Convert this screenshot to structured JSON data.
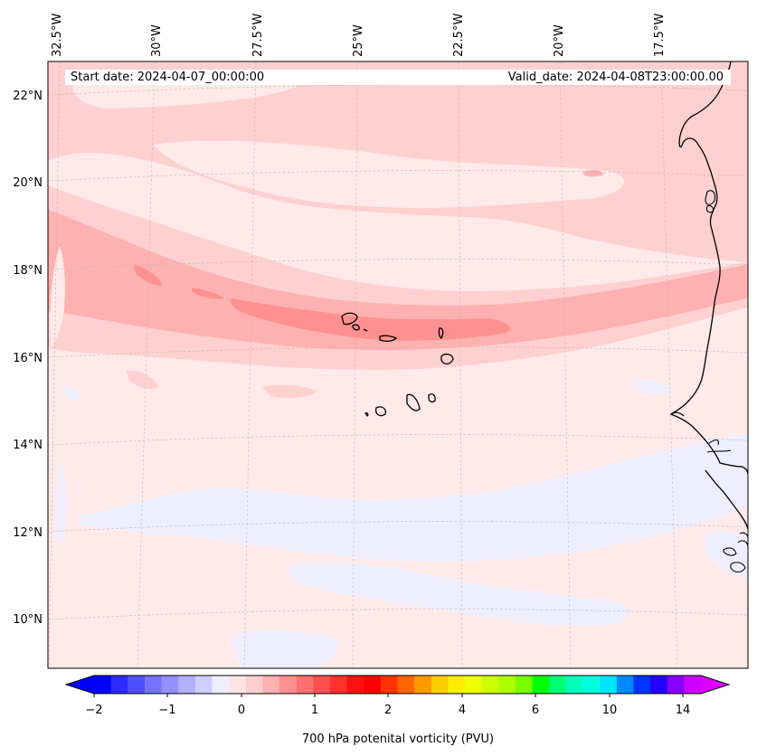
{
  "map": {
    "start_date_label": "Start date: 2024-04-07_00:00:00",
    "valid_date_label": "Valid_date: 2024-04-08T23:00:00.00",
    "lon_labels": [
      "32.5°W",
      "30°W",
      "27.5°W",
      "25°W",
      "22.5°W",
      "20°W",
      "17.5°W"
    ],
    "lat_labels": [
      "22°N",
      "20°N",
      "18°N",
      "16°N",
      "14°N",
      "12°N",
      "10°N"
    ],
    "field_levels": {
      "background": "#ffe9e9",
      "band_light": "#ffd0d0",
      "band_mid": "#ffb0b0",
      "band_core": "#ff9090",
      "negative": "#eeeeff"
    },
    "coastline_color": "#000000"
  },
  "colorbar": {
    "title": "700 hPa potenital vorticity (PVU)",
    "tick_labels": [
      "−2",
      "−1",
      "0",
      "1",
      "2",
      "4",
      "6",
      "10",
      "14"
    ],
    "colors": [
      "#0000ff",
      "#2b2bff",
      "#4f4fff",
      "#7373ff",
      "#9090ff",
      "#b0b0ff",
      "#cfcfff",
      "#eeeeff",
      "#ffe4e4",
      "#ffcfcf",
      "#ffb0b0",
      "#ff9090",
      "#ff7070",
      "#ff5050",
      "#ff3030",
      "#ff1010",
      "#ff0000",
      "#ff3300",
      "#ff6600",
      "#ff9900",
      "#ffcc00",
      "#ffee00",
      "#eeff00",
      "#ccff00",
      "#aaff00",
      "#77ff00",
      "#00ff00",
      "#00ff77",
      "#00ffbb",
      "#00ffdd",
      "#00e5ff",
      "#0088ff",
      "#0033ff",
      "#2200ff",
      "#8800ff",
      "#cc00ff"
    ],
    "under_color": "#0000ff",
    "over_color": "#dd00ff"
  }
}
